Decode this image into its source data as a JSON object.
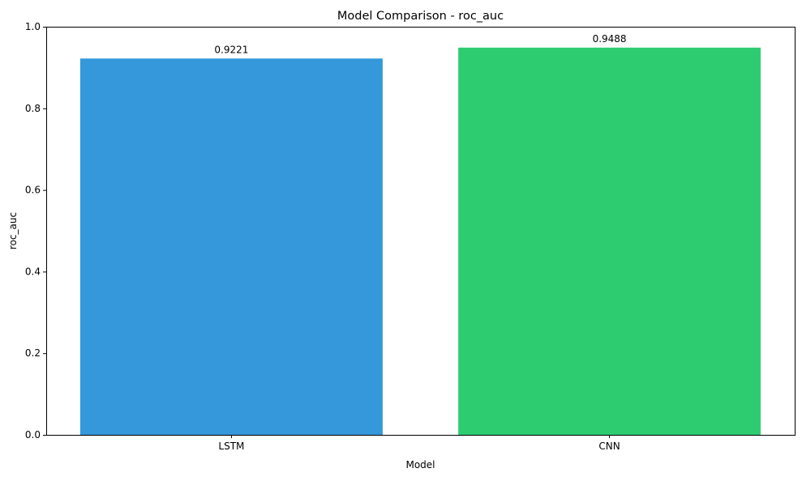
{
  "chart_data": {
    "type": "bar",
    "title": "Model Comparison - roc_auc",
    "xlabel": "Model",
    "ylabel": "roc_auc",
    "categories": [
      "LSTM",
      "CNN"
    ],
    "values": [
      0.9221,
      0.9488
    ],
    "value_labels": [
      "0.9221",
      "0.9488"
    ],
    "bar_colors": [
      "#3498db",
      "#2ecc71"
    ],
    "ylim": [
      0,
      1.0
    ],
    "yticks": [
      0.0,
      0.2,
      0.4,
      0.6,
      0.8,
      1.0
    ],
    "ytick_labels": [
      "0.0",
      "0.2",
      "0.4",
      "0.6",
      "0.8",
      "1.0"
    ],
    "grid": false,
    "legend": false
  }
}
